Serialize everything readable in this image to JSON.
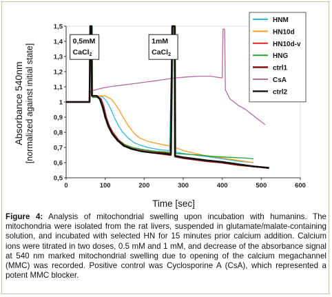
{
  "figure": {
    "caption_label": "Figure 4:",
    "caption_text": " Analysis of mitochondrial swelling upon incubation with humanins. The mitochondria were isolated from the rat livers, suspended in glutamate/malate-containing solution, and incubated with selected HN for 15 minutes prior calcium addition. Calcium ions were titrated in two doses, 0.5 mM and 1 mM, and decrease of the absorbance signal at 540 nm marked mitochondrial swelling due to opening of the calcium megachannel (MMC) was recorded. Positive control was Cyclosporine A (CsA), which represented a potent MMC blocker."
  },
  "chart_data": {
    "type": "line",
    "xlabel": "Time [sec]",
    "ylabel": "Absorbance 540nm",
    "ylabel2": "[normalized against initial state]",
    "xlim": [
      0,
      600
    ],
    "ylim": [
      0.5,
      1.5
    ],
    "xticks": [
      "0",
      "100",
      "200",
      "300",
      "400",
      "500",
      "600"
    ],
    "yticks": [
      "0,5",
      "0,6",
      "0,7",
      "0,8",
      "0,9",
      "1",
      "1,1",
      "1,2",
      "1,3",
      "1,4",
      "1,5"
    ],
    "annotations": [
      {
        "text": "0,5mM",
        "text2": "CaCl",
        "sub": "2",
        "x": 10,
        "y": 1.39
      },
      {
        "text": "1mM",
        "text2": "CaCl",
        "sub": "2",
        "x": 212,
        "y": 1.39
      }
    ],
    "legend_position": "top-right",
    "series": [
      {
        "name": "HNM",
        "color": "#2ab7e6",
        "width": 1.3,
        "points": [
          [
            0,
            1.0
          ],
          [
            60,
            1.0
          ],
          [
            62,
            1.5
          ],
          [
            65,
            1.5
          ],
          [
            66,
            1.04
          ],
          [
            85,
            1.04
          ],
          [
            95,
            1.03
          ],
          [
            105,
            1.0
          ],
          [
            115,
            0.95
          ],
          [
            125,
            0.89
          ],
          [
            135,
            0.84
          ],
          [
            145,
            0.8
          ],
          [
            160,
            0.76
          ],
          [
            175,
            0.73
          ],
          [
            190,
            0.715
          ],
          [
            210,
            0.7
          ],
          [
            240,
            0.685
          ],
          [
            265,
            0.68
          ],
          [
            272,
            1.5
          ],
          [
            278,
            1.5
          ],
          [
            279,
            0.67
          ],
          [
            300,
            0.66
          ],
          [
            330,
            0.65
          ],
          [
            360,
            0.64
          ],
          [
            400,
            0.625
          ],
          [
            440,
            0.61
          ],
          [
            480,
            0.6
          ]
        ]
      },
      {
        "name": "HN10d",
        "color": "#f59a23",
        "width": 1.3,
        "points": [
          [
            0,
            1.0
          ],
          [
            60,
            1.0
          ],
          [
            62,
            1.5
          ],
          [
            65,
            1.5
          ],
          [
            66,
            1.04
          ],
          [
            85,
            1.04
          ],
          [
            100,
            1.04
          ],
          [
            115,
            1.02
          ],
          [
            125,
            0.99
          ],
          [
            135,
            0.95
          ],
          [
            148,
            0.89
          ],
          [
            160,
            0.84
          ],
          [
            175,
            0.79
          ],
          [
            190,
            0.76
          ],
          [
            210,
            0.74
          ],
          [
            235,
            0.725
          ],
          [
            255,
            0.715
          ],
          [
            268,
            0.71
          ],
          [
            272,
            1.5
          ],
          [
            278,
            1.5
          ],
          [
            279,
            0.7
          ],
          [
            300,
            0.68
          ],
          [
            330,
            0.66
          ],
          [
            360,
            0.645
          ],
          [
            400,
            0.63
          ],
          [
            440,
            0.615
          ],
          [
            480,
            0.6
          ]
        ]
      },
      {
        "name": "HN10d-v",
        "color": "#e62020",
        "width": 1.3,
        "points": [
          [
            0,
            1.0
          ],
          [
            60,
            1.0
          ],
          [
            62,
            1.5
          ],
          [
            65,
            1.5
          ],
          [
            66,
            1.04
          ],
          [
            80,
            1.04
          ],
          [
            90,
            1.02
          ],
          [
            97,
            0.97
          ],
          [
            103,
            0.9
          ],
          [
            110,
            0.85
          ],
          [
            120,
            0.8
          ],
          [
            135,
            0.75
          ],
          [
            150,
            0.72
          ],
          [
            170,
            0.7
          ],
          [
            195,
            0.685
          ],
          [
            225,
            0.675
          ],
          [
            255,
            0.665
          ],
          [
            268,
            0.66
          ],
          [
            272,
            1.5
          ],
          [
            278,
            1.5
          ],
          [
            279,
            0.64
          ],
          [
            300,
            0.635
          ],
          [
            330,
            0.625
          ],
          [
            360,
            0.615
          ],
          [
            400,
            0.605
          ],
          [
            440,
            0.59
          ],
          [
            480,
            0.575
          ]
        ]
      },
      {
        "name": "HNG",
        "color": "#22a02a",
        "width": 1.3,
        "points": [
          [
            0,
            1.0
          ],
          [
            60,
            1.0
          ],
          [
            63,
            1.5
          ],
          [
            67,
            1.5
          ],
          [
            68,
            1.03
          ],
          [
            80,
            1.03
          ],
          [
            90,
            1.01
          ],
          [
            97,
            0.96
          ],
          [
            103,
            0.89
          ],
          [
            110,
            0.84
          ],
          [
            120,
            0.79
          ],
          [
            135,
            0.745
          ],
          [
            150,
            0.72
          ],
          [
            170,
            0.7
          ],
          [
            200,
            0.685
          ],
          [
            230,
            0.675
          ],
          [
            260,
            0.67
          ],
          [
            270,
            0.665
          ],
          [
            274,
            1.5
          ],
          [
            280,
            1.5
          ],
          [
            281,
            0.66
          ],
          [
            310,
            0.655
          ],
          [
            340,
            0.65
          ],
          [
            380,
            0.64
          ],
          [
            420,
            0.635
          ],
          [
            460,
            0.63
          ],
          [
            480,
            0.625
          ]
        ]
      },
      {
        "name": "ctrl1",
        "color": "#8b1a1a",
        "width": 2.6,
        "points": [
          [
            0,
            1.0
          ],
          [
            60,
            1.0
          ],
          [
            62,
            1.5
          ],
          [
            65,
            1.5
          ],
          [
            66,
            1.04
          ],
          [
            78,
            1.04
          ],
          [
            88,
            1.02
          ],
          [
            95,
            0.97
          ],
          [
            102,
            0.9
          ],
          [
            110,
            0.84
          ],
          [
            120,
            0.79
          ],
          [
            135,
            0.74
          ],
          [
            150,
            0.71
          ],
          [
            170,
            0.69
          ],
          [
            195,
            0.675
          ],
          [
            225,
            0.665
          ],
          [
            255,
            0.655
          ],
          [
            268,
            0.65
          ],
          [
            272,
            1.5
          ],
          [
            278,
            1.5
          ],
          [
            279,
            0.64
          ],
          [
            300,
            0.63
          ],
          [
            330,
            0.62
          ],
          [
            360,
            0.61
          ],
          [
            400,
            0.6
          ],
          [
            440,
            0.585
          ],
          [
            480,
            0.575
          ],
          [
            520,
            0.565
          ]
        ]
      },
      {
        "name": "CsA",
        "color": "#b56b9e",
        "width": 1.3,
        "points": [
          [
            0,
            1.0
          ],
          [
            58,
            1.0
          ],
          [
            60,
            1.02
          ],
          [
            63,
            1.07
          ],
          [
            75,
            1.08
          ],
          [
            90,
            1.09
          ],
          [
            110,
            1.1
          ],
          [
            140,
            1.11
          ],
          [
            170,
            1.12
          ],
          [
            200,
            1.13
          ],
          [
            230,
            1.14
          ],
          [
            255,
            1.15
          ],
          [
            270,
            1.155
          ],
          [
            285,
            1.16
          ],
          [
            310,
            1.165
          ],
          [
            340,
            1.17
          ],
          [
            370,
            1.17
          ],
          [
            395,
            1.16
          ],
          [
            400,
            1.16
          ],
          [
            402,
            1.48
          ],
          [
            406,
            1.48
          ],
          [
            408,
            1.08
          ],
          [
            420,
            1.02
          ],
          [
            440,
            0.98
          ],
          [
            460,
            0.95
          ],
          [
            480,
            0.91
          ],
          [
            500,
            0.87
          ],
          [
            510,
            0.85
          ]
        ]
      },
      {
        "name": "ctrl2",
        "color": "#111111",
        "width": 2.4,
        "points": [
          [
            0,
            1.0
          ],
          [
            60,
            1.0
          ],
          [
            62,
            1.5
          ],
          [
            65,
            1.5
          ],
          [
            66,
            1.04
          ],
          [
            78,
            1.04
          ],
          [
            86,
            1.02
          ],
          [
            93,
            0.97
          ],
          [
            100,
            0.9
          ],
          [
            108,
            0.84
          ],
          [
            118,
            0.79
          ],
          [
            132,
            0.745
          ],
          [
            148,
            0.71
          ],
          [
            168,
            0.69
          ],
          [
            192,
            0.675
          ],
          [
            222,
            0.665
          ],
          [
            252,
            0.66
          ],
          [
            268,
            0.655
          ],
          [
            272,
            1.5
          ],
          [
            278,
            1.5
          ],
          [
            279,
            0.645
          ],
          [
            300,
            0.635
          ],
          [
            330,
            0.625
          ],
          [
            360,
            0.615
          ],
          [
            400,
            0.605
          ],
          [
            440,
            0.59
          ],
          [
            480,
            0.575
          ],
          [
            520,
            0.565
          ]
        ]
      }
    ]
  }
}
